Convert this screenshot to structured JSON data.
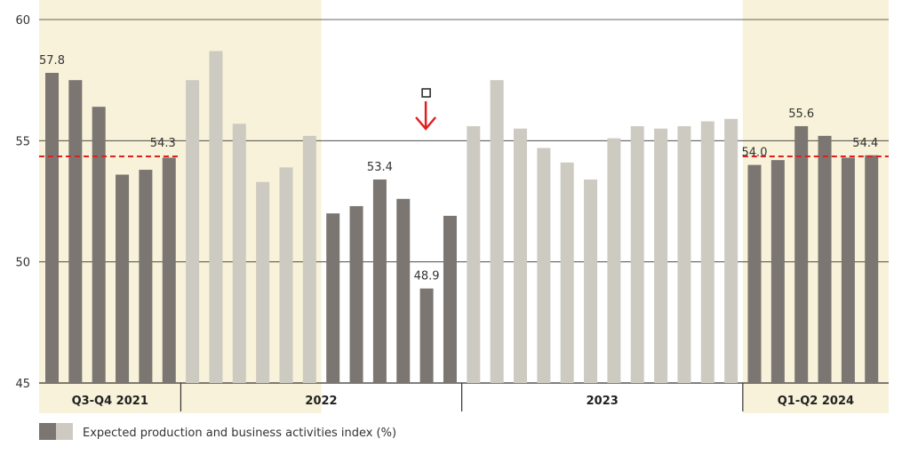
{
  "chart_data": {
    "type": "bar",
    "ylim": [
      45,
      60
    ],
    "y_ticks": [
      45,
      50,
      55,
      60
    ],
    "grid": true,
    "legend_position": "bottom-left",
    "series": [
      {
        "name": "Expected production and business activities index (%)",
        "values": [
          57.8,
          57.5,
          56.4,
          53.6,
          53.8,
          54.3,
          57.5,
          58.7,
          55.7,
          53.3,
          53.9,
          55.2,
          52.0,
          52.3,
          53.4,
          52.6,
          48.9,
          51.9,
          55.6,
          57.5,
          55.5,
          54.7,
          54.1,
          53.4,
          55.1,
          55.6,
          55.5,
          55.6,
          55.8,
          55.9,
          54.0,
          54.2,
          55.6,
          55.2,
          54.3,
          54.4
        ]
      }
    ],
    "periods": [
      {
        "label": "Q3-Q4 2021",
        "shaded": true,
        "start": 0,
        "count": 6,
        "reference_label": "54.3"
      },
      {
        "label": "2022",
        "shaded": false,
        "start": 6,
        "count": 12,
        "highlight_start": 6,
        "highlight_count": 6
      },
      {
        "label": "2023",
        "shaded": false,
        "start": 18,
        "count": 12
      },
      {
        "label": "Q1-Q2 2024",
        "shaded": true,
        "start": 30,
        "count": 6,
        "reference_label": "54.4"
      }
    ],
    "dark_bar_indices": [
      0,
      1,
      2,
      3,
      4,
      5,
      12,
      13,
      14,
      15,
      16,
      17,
      30,
      31,
      32,
      33,
      34,
      35
    ],
    "data_labels": [
      {
        "index": 0,
        "text": "57.8"
      },
      {
        "index": 14,
        "text": "53.4"
      },
      {
        "index": 16,
        "text": "48.9"
      },
      {
        "index": 30,
        "text": "54.0"
      },
      {
        "index": 32,
        "text": "55.6"
      }
    ],
    "reference_lines": [
      {
        "value": 54.35,
        "from": 0,
        "to": 5,
        "label": "54.3"
      },
      {
        "value": 54.35,
        "from": 30,
        "to": 35,
        "label": "54.4"
      }
    ],
    "annotation": {
      "type": "down-arrow",
      "at_index": 16
    },
    "legend": {
      "label": "Expected production and business activities index (%)"
    }
  },
  "colors": {
    "dark_bar": "#7b7671",
    "light_bar": "#cdcbc1",
    "shade": "#f7f2d9",
    "reference": "#e02020",
    "arrow": "#e02020",
    "grid": "#333333"
  }
}
